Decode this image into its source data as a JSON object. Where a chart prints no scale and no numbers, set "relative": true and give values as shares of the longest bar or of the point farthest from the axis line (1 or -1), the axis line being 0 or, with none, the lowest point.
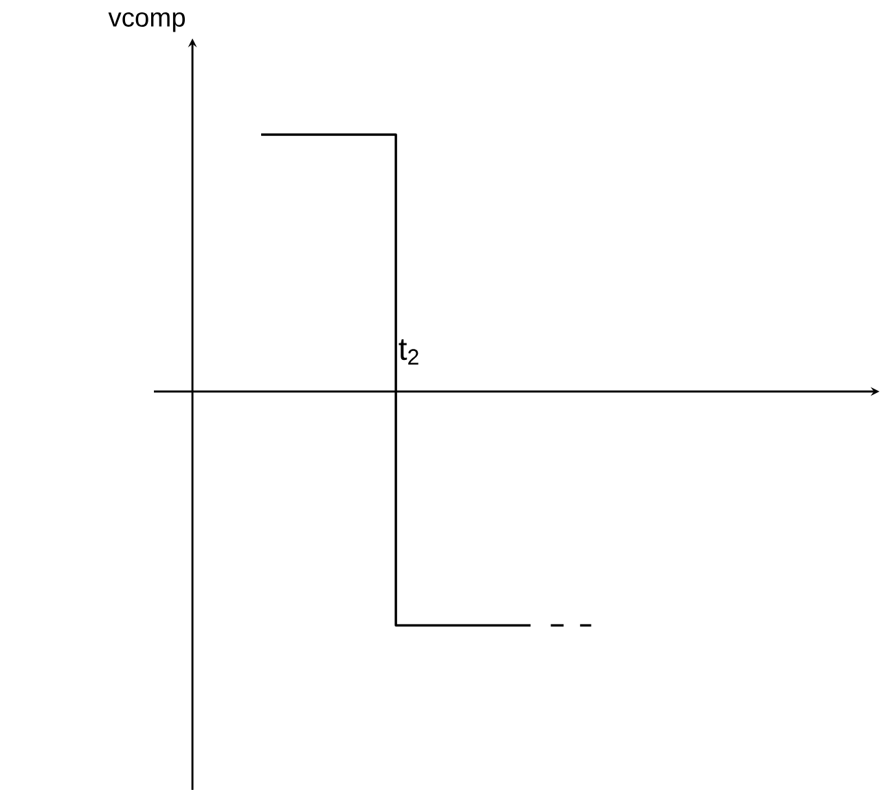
{
  "chart_data": {
    "type": "step",
    "relative": true,
    "ylabel": "vcomp",
    "categories": [
      null,
      null,
      null
    ],
    "series": [
      {
        "color": "#000000",
        "values": [
          1,
          -0.91,
          -0.91
        ]
      }
    ],
    "annotations": [
      "t$_{2}$"
    ]
  }
}
